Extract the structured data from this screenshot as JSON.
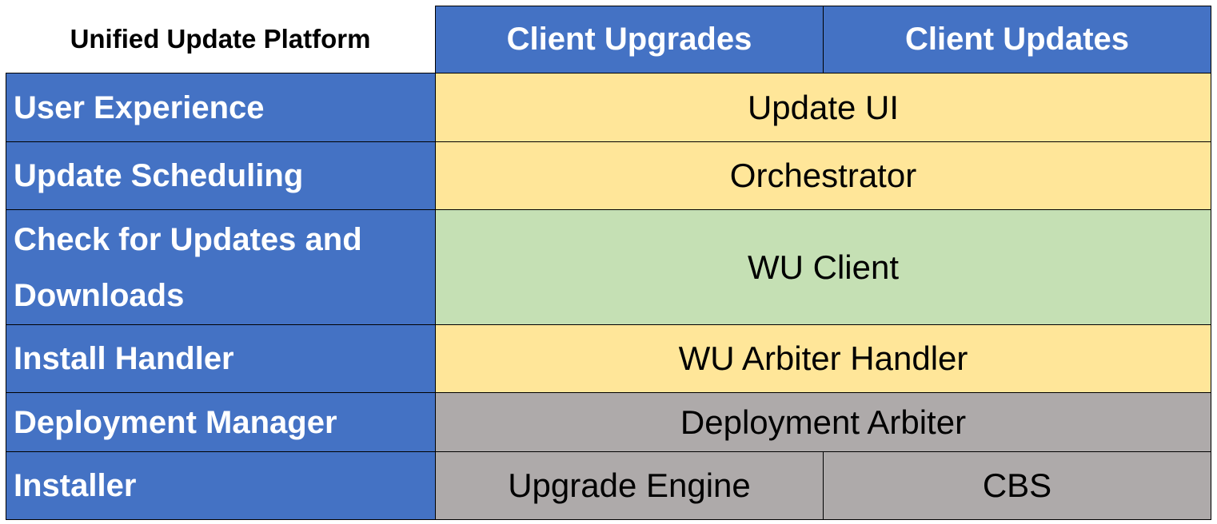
{
  "title": "Unified Update Platform",
  "columns": [
    "Client Upgrades",
    "Client Updates"
  ],
  "rows": [
    {
      "label": "User Experience",
      "cells": [
        "Update UI"
      ],
      "color": "#FFE699"
    },
    {
      "label": "Update Scheduling",
      "cells": [
        "Orchestrator"
      ],
      "color": "#FFE699"
    },
    {
      "label": "Check for Updates and Downloads",
      "cells": [
        "WU Client"
      ],
      "color": "#C5E0B4"
    },
    {
      "label": "Install Handler",
      "cells": [
        "WU Arbiter Handler"
      ],
      "color": "#FFE699"
    },
    {
      "label": "Deployment Manager",
      "cells": [
        "Deployment Arbiter"
      ],
      "color": "#AEAAAA"
    },
    {
      "label": "Installer",
      "cells": [
        "Upgrade Engine",
        "CBS"
      ],
      "color": "#AEAAAA"
    }
  ],
  "colors": {
    "header": "#4472C4",
    "yellow": "#FFE699",
    "green": "#C5E0B4",
    "gray": "#AEAAAA"
  }
}
